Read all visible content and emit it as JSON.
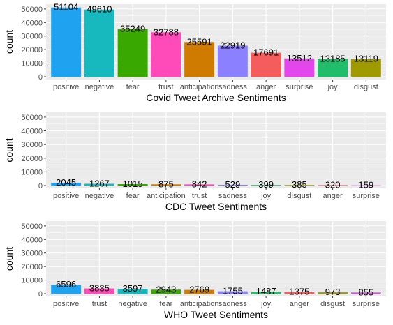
{
  "chart_data": [
    {
      "type": "bar",
      "title": "",
      "xlabel": "Covid Tweet Archive Sentiments",
      "ylabel": "count",
      "ylim": [
        0,
        52000
      ],
      "yticks": [
        0,
        10000,
        20000,
        30000,
        40000,
        50000
      ],
      "grid": true,
      "categories": [
        "positive",
        "negative",
        "fear",
        "trust",
        "anticipation",
        "sadness",
        "anger",
        "surprise",
        "joy",
        "disgust"
      ],
      "values": [
        51104,
        49610,
        35249,
        32788,
        25591,
        22919,
        17691,
        13512,
        13185,
        13119
      ]
    },
    {
      "type": "bar",
      "title": "",
      "xlabel": "CDC Tweet Sentiments",
      "ylabel": "count",
      "ylim": [
        0,
        52000
      ],
      "yticks": [
        0,
        10000,
        20000,
        30000,
        40000,
        50000
      ],
      "grid": true,
      "categories": [
        "positive",
        "negative",
        "fear",
        "anticipation",
        "trust",
        "sadness",
        "joy",
        "disgust",
        "anger",
        "surprise"
      ],
      "values": [
        2045,
        1267,
        1015,
        875,
        842,
        529,
        399,
        385,
        320,
        159
      ]
    },
    {
      "type": "bar",
      "title": "",
      "xlabel": "WHO Tweet Sentiments",
      "ylabel": "count",
      "ylim": [
        0,
        52000
      ],
      "yticks": [
        0,
        10000,
        20000,
        30000,
        40000,
        50000
      ],
      "grid": true,
      "categories": [
        "positive",
        "trust",
        "negative",
        "fear",
        "anticipation",
        "sadness",
        "joy",
        "anger",
        "disgust",
        "surprise"
      ],
      "values": [
        6596,
        3835,
        3597,
        2943,
        2769,
        1755,
        1487,
        1375,
        973,
        855
      ]
    }
  ],
  "colors": {
    "panel_background": "#ebebeb",
    "grid": "#ffffff",
    "axis_text": "#4d4d4d",
    "sentiments": {
      "positive": "#1fa2f0",
      "negative": "#17b8be",
      "fear": "#39a800",
      "trust": "#ff4ab9",
      "anticipation": "#cf7a00",
      "sadness": "#8b80ff",
      "anger": "#f55d5d",
      "surprise": "#e346eb",
      "joy": "#21bd6b",
      "disgust": "#9e9a00"
    }
  }
}
